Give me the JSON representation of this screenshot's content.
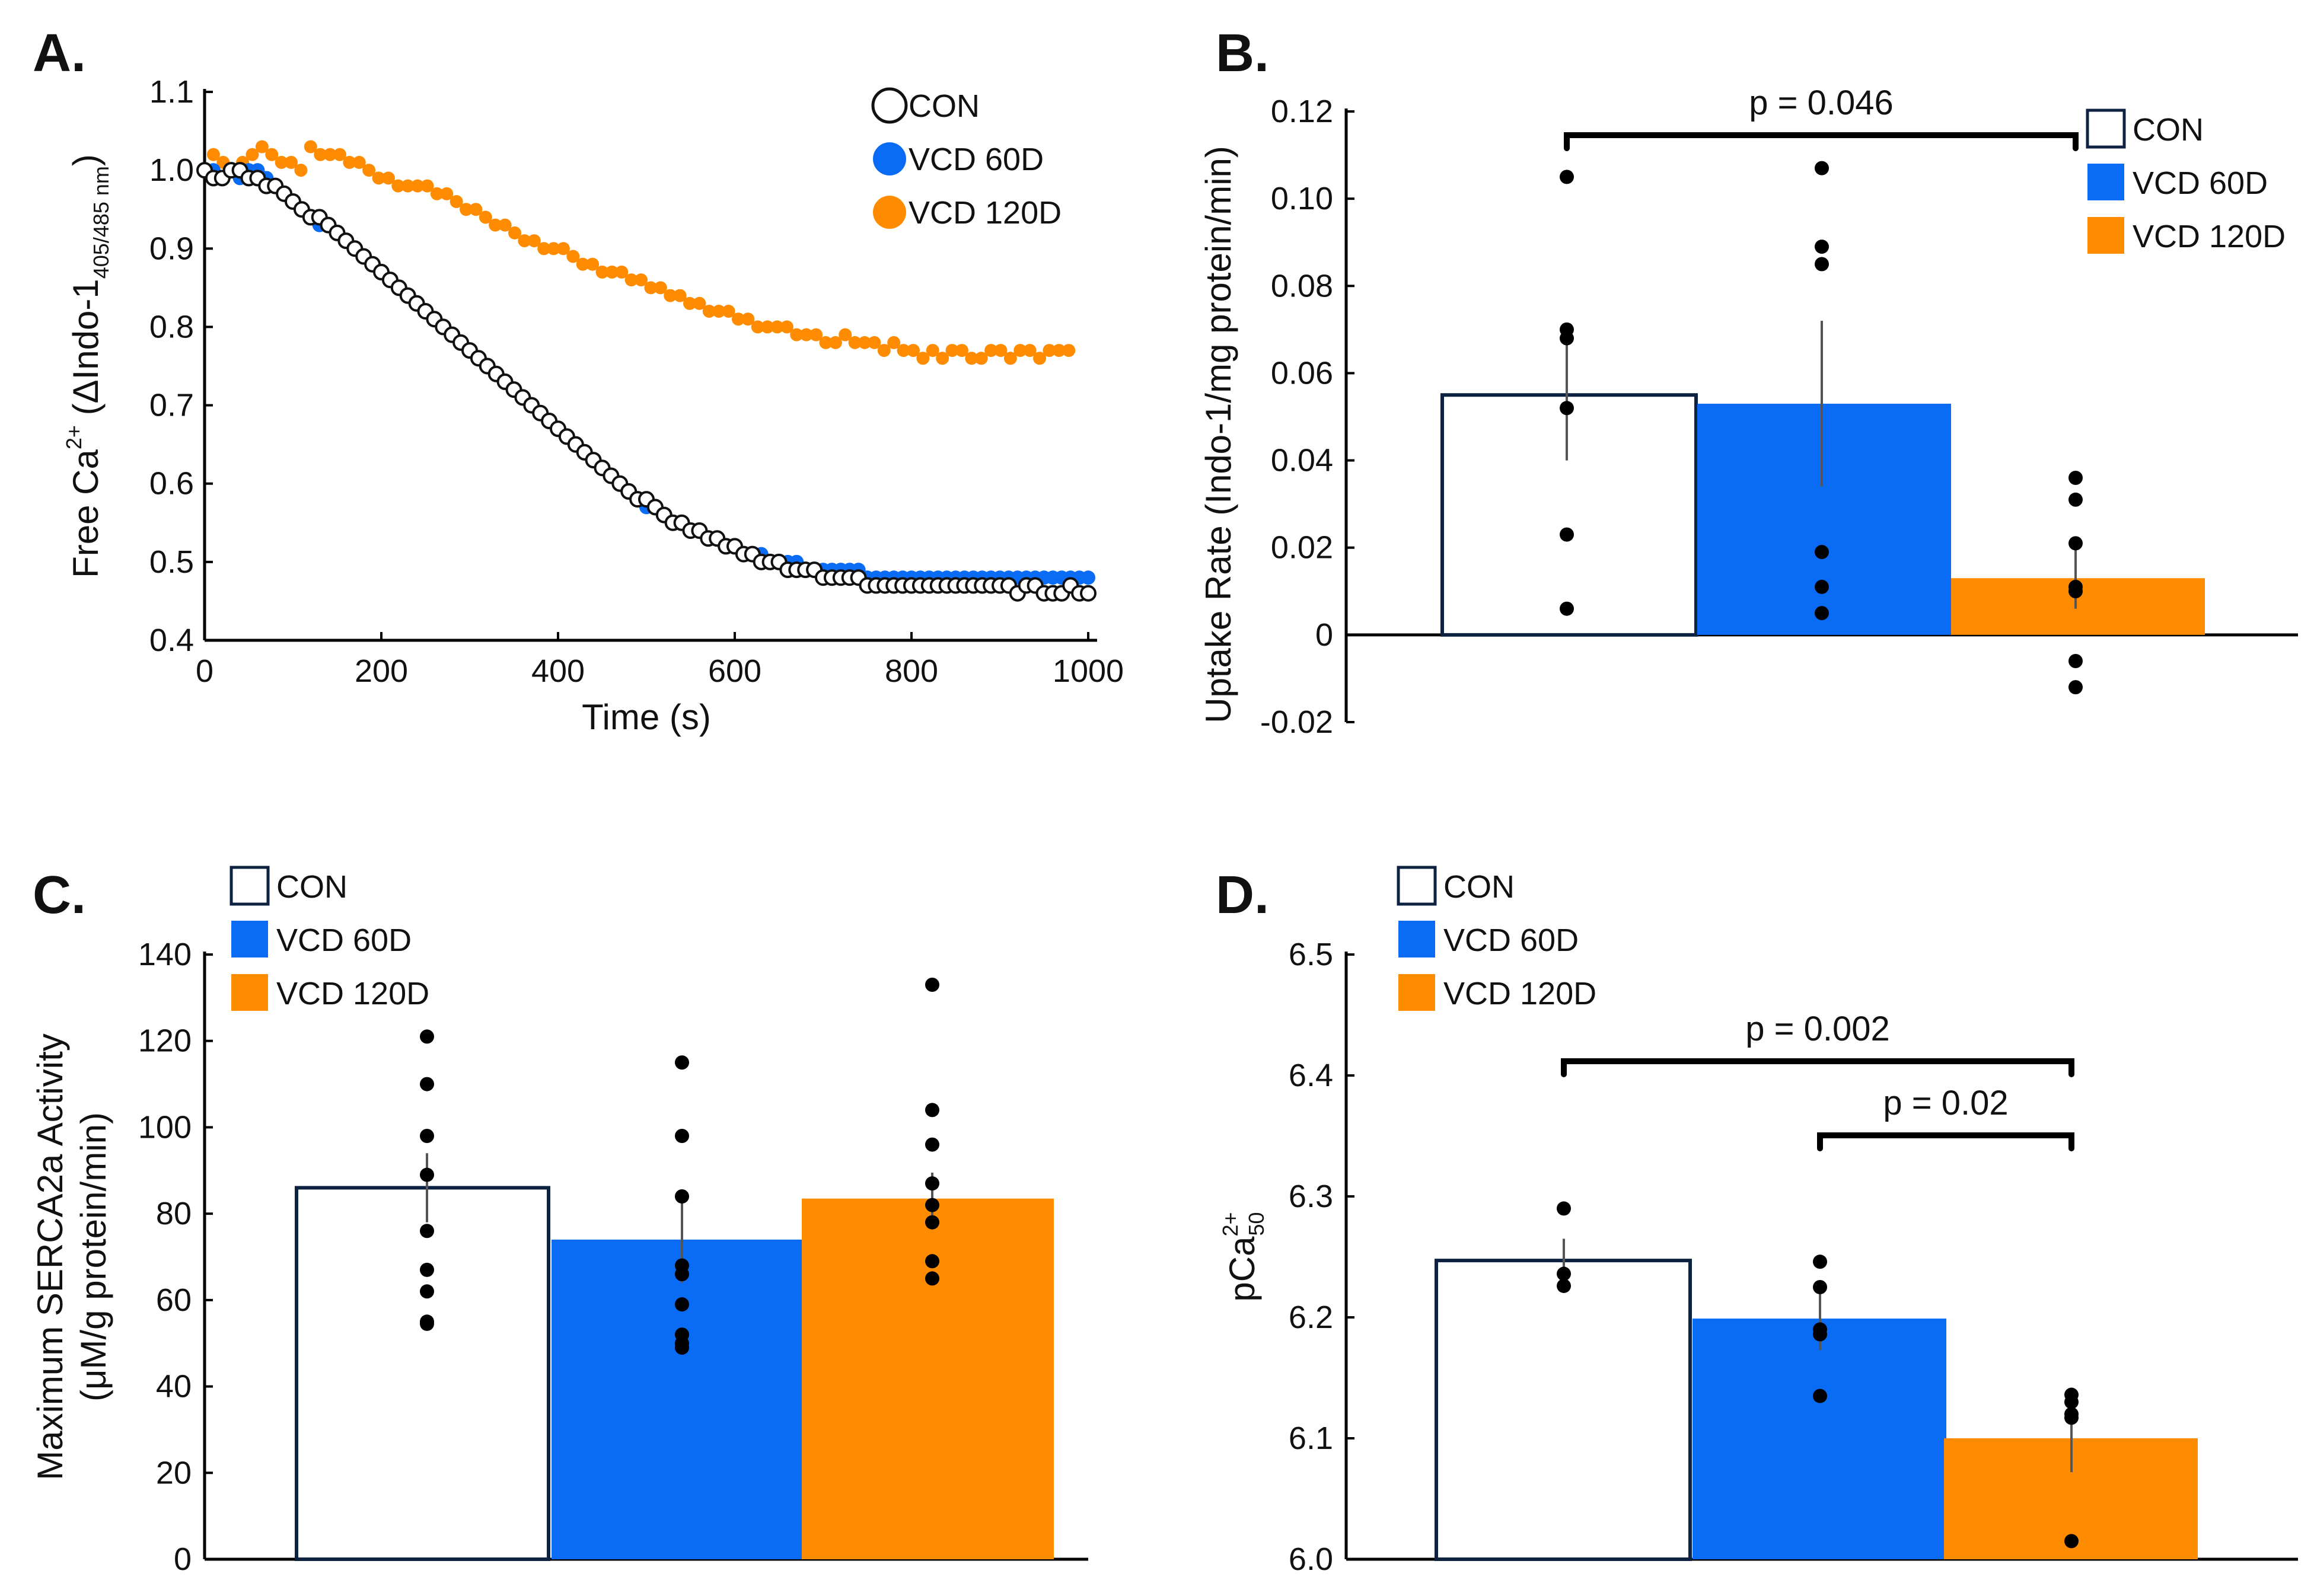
{
  "colors": {
    "con_fill": "#ffffff",
    "con_edge": "#0d2140",
    "vcd60": "#0a6cf5",
    "vcd120": "#ff8c00",
    "point": "#000000",
    "error": "#555555"
  },
  "chart_data": [
    {
      "panel": "A.",
      "type": "scatter",
      "title": "",
      "xlabel": "Time (s)",
      "ylabel_main": "Free Ca",
      "ylabel_sup": "2+",
      "ylabel_mid": " (ΔIndo-1",
      "ylabel_sub": "405/485 nm",
      "ylabel_end": ")",
      "xlim": [
        0,
        1000
      ],
      "ylim": [
        0.4,
        1.1
      ],
      "xticks": [
        0,
        200,
        400,
        600,
        800,
        1000
      ],
      "yticks": [
        0.4,
        0.5,
        0.6,
        0.7,
        0.8,
        0.9,
        1.0,
        1.1
      ],
      "ytick_labels": [
        "0.4",
        "0.5",
        "0.6",
        "0.7",
        "0.8",
        "0.9",
        "1.0",
        "1.1"
      ],
      "legend": [
        "CON",
        "VCD 60D",
        "VCD 120D"
      ],
      "legend_position": "top-right",
      "series": [
        {
          "name": "VCD 120D",
          "key": "vcd120",
          "x_start": 10,
          "x_step": 11,
          "values": [
            1.02,
            1.01,
            1.0,
            1.01,
            1.02,
            1.03,
            1.02,
            1.01,
            1.01,
            1.0,
            1.03,
            1.02,
            1.02,
            1.02,
            1.01,
            1.01,
            1.0,
            0.99,
            0.99,
            0.98,
            0.98,
            0.98,
            0.98,
            0.97,
            0.97,
            0.96,
            0.95,
            0.95,
            0.94,
            0.93,
            0.93,
            0.92,
            0.91,
            0.91,
            0.9,
            0.9,
            0.9,
            0.89,
            0.88,
            0.88,
            0.87,
            0.87,
            0.87,
            0.86,
            0.86,
            0.85,
            0.85,
            0.84,
            0.84,
            0.83,
            0.83,
            0.82,
            0.82,
            0.82,
            0.81,
            0.81,
            0.8,
            0.8,
            0.8,
            0.8,
            0.79,
            0.79,
            0.79,
            0.78,
            0.78,
            0.79,
            0.78,
            0.78,
            0.78,
            0.77,
            0.78,
            0.77,
            0.77,
            0.76,
            0.77,
            0.76,
            0.77,
            0.77,
            0.76,
            0.76,
            0.77,
            0.77,
            0.76,
            0.77,
            0.77,
            0.76,
            0.77,
            0.77,
            0.77
          ]
        },
        {
          "name": "VCD 60D",
          "key": "vcd60",
          "x_start": 0,
          "x_step": 10,
          "values": [
            1.0,
            1.0,
            0.99,
            1.0,
            0.99,
            1.0,
            1.0,
            0.99,
            0.98,
            0.97,
            0.96,
            0.95,
            0.94,
            0.93,
            0.93,
            0.92,
            0.91,
            0.9,
            0.89,
            0.88,
            0.87,
            0.86,
            0.85,
            0.84,
            0.83,
            0.82,
            0.81,
            0.8,
            0.79,
            0.78,
            0.77,
            0.76,
            0.75,
            0.74,
            0.73,
            0.72,
            0.71,
            0.7,
            0.69,
            0.68,
            0.67,
            0.66,
            0.65,
            0.64,
            0.63,
            0.62,
            0.61,
            0.6,
            0.59,
            0.58,
            0.57,
            0.57,
            0.56,
            0.55,
            0.55,
            0.54,
            0.54,
            0.53,
            0.53,
            0.52,
            0.52,
            0.51,
            0.51,
            0.51,
            0.5,
            0.5,
            0.5,
            0.5,
            0.49,
            0.49,
            0.49,
            0.49,
            0.49,
            0.49,
            0.49,
            0.48,
            0.48,
            0.48,
            0.48,
            0.48,
            0.48,
            0.48,
            0.48,
            0.48,
            0.48,
            0.48,
            0.48,
            0.48,
            0.48,
            0.48,
            0.48,
            0.48,
            0.48,
            0.48,
            0.48,
            0.48,
            0.48,
            0.48,
            0.48,
            0.48,
            0.48
          ]
        },
        {
          "name": "CON",
          "key": "con",
          "x_start": 0,
          "x_step": 10,
          "values": [
            1.0,
            0.99,
            0.99,
            1.0,
            1.0,
            0.99,
            0.99,
            0.98,
            0.98,
            0.97,
            0.96,
            0.95,
            0.94,
            0.94,
            0.93,
            0.92,
            0.91,
            0.9,
            0.89,
            0.88,
            0.87,
            0.86,
            0.85,
            0.84,
            0.83,
            0.82,
            0.81,
            0.8,
            0.79,
            0.78,
            0.77,
            0.76,
            0.75,
            0.74,
            0.73,
            0.72,
            0.71,
            0.7,
            0.69,
            0.68,
            0.67,
            0.66,
            0.65,
            0.64,
            0.63,
            0.62,
            0.61,
            0.6,
            0.59,
            0.58,
            0.58,
            0.57,
            0.56,
            0.55,
            0.55,
            0.54,
            0.54,
            0.53,
            0.53,
            0.52,
            0.52,
            0.51,
            0.51,
            0.5,
            0.5,
            0.5,
            0.49,
            0.49,
            0.49,
            0.49,
            0.48,
            0.48,
            0.48,
            0.48,
            0.48,
            0.47,
            0.47,
            0.47,
            0.47,
            0.47,
            0.47,
            0.47,
            0.47,
            0.47,
            0.47,
            0.47,
            0.47,
            0.47,
            0.47,
            0.47,
            0.47,
            0.47,
            0.46,
            0.47,
            0.47,
            0.46,
            0.46,
            0.46,
            0.47,
            0.46,
            0.46
          ]
        }
      ]
    },
    {
      "panel": "B.",
      "type": "bar",
      "ylabel": "Uptake Rate (Indo-1/mg protein/min)",
      "ylim": [
        -0.02,
        0.12
      ],
      "yticks": [
        -0.02,
        0,
        0.02,
        0.04,
        0.06,
        0.08,
        0.1,
        0.12
      ],
      "ytick_labels": [
        "-0.02",
        "0",
        "0.02",
        "0.04",
        "0.06",
        "0.08",
        "0.10",
        "0.12"
      ],
      "categories": [
        "CON",
        "VCD 60D",
        "VCD 120D"
      ],
      "values": [
        0.055,
        0.053,
        0.013
      ],
      "errors": [
        0.015,
        0.019,
        0.007
      ],
      "points": [
        [
          0.105,
          0.07,
          0.068,
          0.052,
          0.023,
          0.006
        ],
        [
          0.107,
          0.089,
          0.085,
          0.019,
          0.011,
          0.005
        ],
        [
          0.036,
          0.031,
          0.021,
          0.011,
          0.01,
          -0.006,
          -0.012
        ]
      ],
      "legend": [
        "CON",
        "VCD 60D",
        "VCD 120D"
      ],
      "legend_position": "top-right",
      "comparisons": [
        {
          "from": 0,
          "to": 2,
          "label": "p = 0.046"
        }
      ]
    },
    {
      "panel": "C.",
      "type": "bar",
      "ylabel_line1": "Maximum SERCA2a Activity",
      "ylabel_line2": "(μM/g protein/min)",
      "ylim": [
        0,
        140
      ],
      "yticks": [
        0,
        20,
        40,
        60,
        80,
        100,
        120,
        140
      ],
      "ytick_labels": [
        "0",
        "20",
        "40",
        "60",
        "80",
        "100",
        "120",
        "140"
      ],
      "categories": [
        "CON",
        "VCD 60D",
        "VCD 120D"
      ],
      "values": [
        86,
        74,
        83.5
      ],
      "errors": [
        8,
        10,
        6
      ],
      "points": [
        [
          121,
          110,
          98,
          89,
          76,
          67,
          62,
          55,
          54.5
        ],
        [
          115,
          98,
          84,
          68,
          66,
          59,
          52,
          50,
          49
        ],
        [
          133,
          104,
          96,
          87,
          82,
          78,
          69,
          65
        ]
      ],
      "legend": [
        "CON",
        "VCD 60D",
        "VCD 120D"
      ],
      "legend_position": "top-left",
      "comparisons": []
    },
    {
      "panel": "D.",
      "type": "bar",
      "ylabel_main": "pCa",
      "ylabel_sup": "2+",
      "ylabel_sub": "50",
      "ylim": [
        6.0,
        6.5
      ],
      "yticks": [
        6.0,
        6.1,
        6.2,
        6.3,
        6.4,
        6.5
      ],
      "ytick_labels": [
        "6.0",
        "6.1",
        "6.2",
        "6.3",
        "6.4",
        "6.5"
      ],
      "categories": [
        "CON",
        "VCD 60D",
        "VCD 120D"
      ],
      "values": [
        6.247,
        6.199,
        6.1
      ],
      "errors": [
        0.018,
        0.026,
        0.028
      ],
      "points": [
        [
          6.29,
          6.236,
          6.226
        ],
        [
          6.246,
          6.225,
          6.19,
          6.186,
          6.135
        ],
        [
          6.136,
          6.13,
          6.12,
          6.117,
          6.015
        ]
      ],
      "legend": [
        "CON",
        "VCD 60D",
        "VCD 120D"
      ],
      "legend_position": "top-left",
      "comparisons": [
        {
          "from": 0,
          "to": 2,
          "label": "p = 0.002"
        },
        {
          "from": 1,
          "to": 2,
          "label": "p = 0.02"
        }
      ]
    }
  ]
}
